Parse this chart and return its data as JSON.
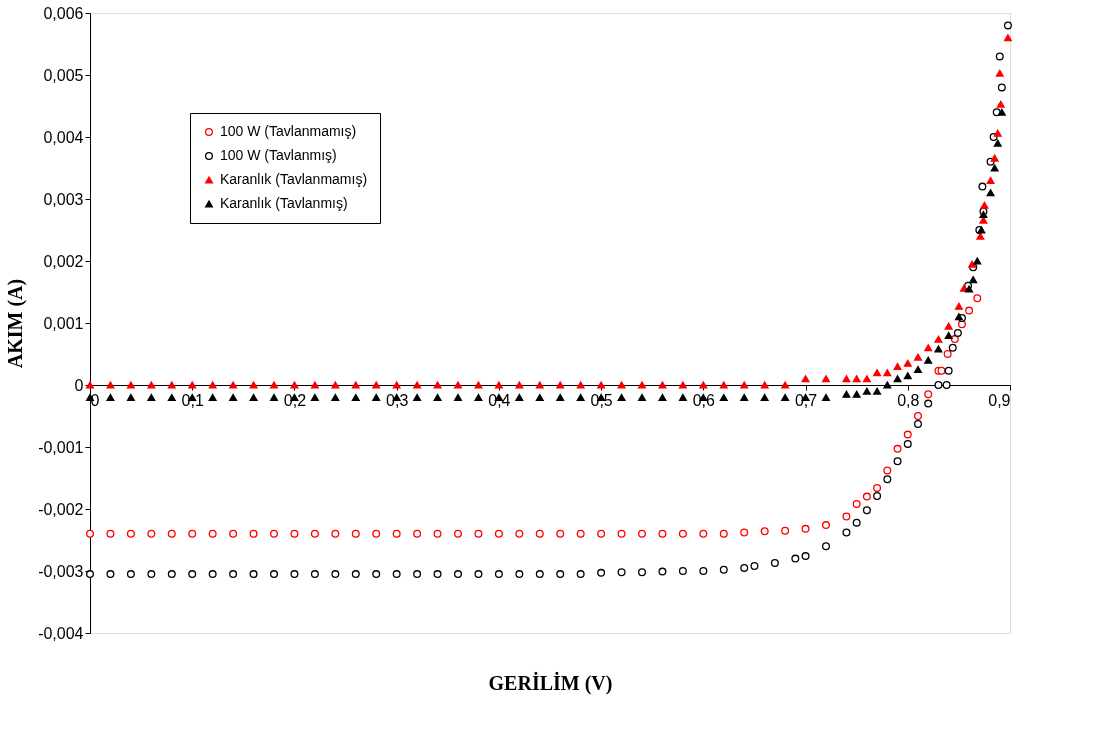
{
  "chart_data": {
    "type": "scatter",
    "xlabel": "GERİLİM (V)",
    "ylabel": "AKIM (A)",
    "xlim": [
      0,
      0.9
    ],
    "xticks": [
      0,
      {
        "value": 0.1,
        "label": "0,1"
      },
      {
        "value": 0.2,
        "label": "0,2"
      },
      {
        "value": 0.3,
        "label": "0,3"
      },
      {
        "value": 0.4,
        "label": "0,4"
      },
      {
        "value": 0.5,
        "label": "0,5"
      },
      {
        "value": 0.6,
        "label": "0,6"
      },
      {
        "value": 0.7,
        "label": "0,7"
      },
      {
        "value": 0.8,
        "label": "0,8"
      },
      {
        "value": 0.9,
        "label": "0,9"
      }
    ],
    "ylim": [
      -0.004,
      0.006
    ],
    "yticks": [
      {
        "value": -0.004,
        "label": "-0,004"
      },
      {
        "value": -0.003,
        "label": "-0,003"
      },
      {
        "value": -0.002,
        "label": "-0,002"
      },
      {
        "value": -0.001,
        "label": "-0,001"
      },
      0,
      {
        "value": 0.001,
        "label": "0,001"
      },
      {
        "value": 0.002,
        "label": "0,002"
      },
      {
        "value": 0.003,
        "label": "0,003"
      },
      {
        "value": 0.004,
        "label": "0,004"
      },
      {
        "value": 0.005,
        "label": "0,005"
      },
      {
        "value": 0.006,
        "label": "0,006"
      }
    ],
    "grid": false,
    "legend": "top left",
    "series": [
      {
        "name": "100 W (Tavlanmamış)",
        "color": "#ff0000",
        "marker": "circle",
        "x": [
          0,
          0.02,
          0.04,
          0.06,
          0.08,
          0.1,
          0.12,
          0.14,
          0.16,
          0.18,
          0.2,
          0.22,
          0.24,
          0.26,
          0.28,
          0.3,
          0.32,
          0.34,
          0.36,
          0.38,
          0.4,
          0.42,
          0.44,
          0.46,
          0.48,
          0.5,
          0.52,
          0.54,
          0.56,
          0.58,
          0.6,
          0.62,
          0.64,
          0.66,
          0.68,
          0.7,
          0.72,
          0.74,
          0.75,
          0.76,
          0.77,
          0.78,
          0.79,
          0.8,
          0.81,
          0.82,
          0.83,
          0.833,
          0.839,
          0.846,
          0.853,
          0.86,
          0.868
        ],
        "values": [
          -0.0024,
          -0.0024,
          -0.0024,
          -0.0024,
          -0.0024,
          -0.0024,
          -0.0024,
          -0.0024,
          -0.0024,
          -0.0024,
          -0.0024,
          -0.0024,
          -0.0024,
          -0.0024,
          -0.0024,
          -0.0024,
          -0.0024,
          -0.0024,
          -0.0024,
          -0.0024,
          -0.0024,
          -0.0024,
          -0.0024,
          -0.0024,
          -0.0024,
          -0.0024,
          -0.0024,
          -0.0024,
          -0.0024,
          -0.0024,
          -0.0024,
          -0.0024,
          -0.00238,
          -0.00236,
          -0.00235,
          -0.00232,
          -0.00226,
          -0.00212,
          -0.00192,
          -0.0018,
          -0.00166,
          -0.00138,
          -0.00103,
          -0.0008,
          -0.0005,
          -0.00015,
          0.00023,
          0.00023,
          0.0005,
          0.00074,
          0.00098,
          0.0012,
          0.0014
        ]
      },
      {
        "name": "100 W (Tavlanmış)",
        "color": "#000000",
        "marker": "circle",
        "x": [
          0,
          0.02,
          0.04,
          0.06,
          0.08,
          0.1,
          0.12,
          0.14,
          0.16,
          0.18,
          0.2,
          0.22,
          0.24,
          0.26,
          0.28,
          0.3,
          0.32,
          0.34,
          0.36,
          0.38,
          0.4,
          0.42,
          0.44,
          0.46,
          0.48,
          0.5,
          0.52,
          0.54,
          0.56,
          0.58,
          0.6,
          0.62,
          0.64,
          0.65,
          0.67,
          0.69,
          0.7,
          0.72,
          0.74,
          0.75,
          0.76,
          0.77,
          0.78,
          0.79,
          0.8,
          0.81,
          0.82,
          0.83,
          0.838,
          0.84,
          0.844,
          0.849,
          0.853,
          0.859,
          0.864,
          0.87,
          0.873,
          0.874,
          0.881,
          0.884,
          0.887,
          0.89,
          0.892,
          0.898
        ],
        "values": [
          -0.00305,
          -0.00305,
          -0.00305,
          -0.00305,
          -0.00305,
          -0.00305,
          -0.00305,
          -0.00305,
          -0.00305,
          -0.00305,
          -0.00305,
          -0.00305,
          -0.00305,
          -0.00305,
          -0.00305,
          -0.00305,
          -0.00305,
          -0.00305,
          -0.00305,
          -0.00305,
          -0.00305,
          -0.00305,
          -0.00305,
          -0.00305,
          -0.00305,
          -0.00303,
          -0.00302,
          -0.00302,
          -0.00301,
          -0.003,
          -0.003,
          -0.00298,
          -0.00295,
          -0.00292,
          -0.00287,
          -0.0028,
          -0.00276,
          -0.0026,
          -0.00238,
          -0.00222,
          -0.00202,
          -0.00179,
          -0.00152,
          -0.00123,
          -0.00095,
          -0.00063,
          -0.0003,
          0.0,
          0.0,
          0.00023,
          0.0006,
          0.00084,
          0.00108,
          0.0016,
          0.0019,
          0.0025,
          0.0032,
          0.0028,
          0.0036,
          0.004,
          0.0044,
          0.0053,
          0.0048,
          0.0058
        ]
      },
      {
        "name": "Karanlık (Tavlanmamış)",
        "color": "#ff0000",
        "marker": "triangle",
        "x": [
          0,
          0.02,
          0.04,
          0.06,
          0.08,
          0.1,
          0.12,
          0.14,
          0.16,
          0.18,
          0.2,
          0.22,
          0.24,
          0.26,
          0.28,
          0.3,
          0.32,
          0.34,
          0.36,
          0.38,
          0.4,
          0.42,
          0.44,
          0.46,
          0.48,
          0.5,
          0.52,
          0.54,
          0.56,
          0.58,
          0.6,
          0.62,
          0.64,
          0.66,
          0.68,
          0.7,
          0.72,
          0.74,
          0.75,
          0.76,
          0.77,
          0.78,
          0.79,
          0.8,
          0.81,
          0.82,
          0.83,
          0.84,
          0.85,
          0.855,
          0.863,
          0.871,
          0.874,
          0.875,
          0.881,
          0.885,
          0.888,
          0.891,
          0.89,
          0.898
        ],
        "values": [
          0,
          0,
          0,
          0,
          0,
          0,
          0,
          0,
          0,
          0,
          0,
          0,
          0,
          0,
          0,
          0,
          0,
          0,
          0,
          0,
          0,
          0,
          0,
          0,
          0,
          0,
          0,
          0,
          0,
          0,
          0,
          0,
          0,
          0,
          0,
          0.0001,
          0.0001,
          0.0001,
          0.0001,
          0.0001,
          0.0002,
          0.0002,
          0.0003,
          0.00035,
          0.00045,
          0.0006,
          0.00074,
          0.00095,
          0.00127,
          0.00156,
          0.00195,
          0.0024,
          0.00266,
          0.0029,
          0.0033,
          0.00366,
          0.00406,
          0.00453,
          0.00503,
          0.0056
        ]
      },
      {
        "name": "Karanlık (Tavlanmış)",
        "color": "#000000",
        "marker": "triangle",
        "x": [
          0,
          0.02,
          0.04,
          0.06,
          0.08,
          0.1,
          0.12,
          0.14,
          0.16,
          0.18,
          0.2,
          0.22,
          0.24,
          0.26,
          0.28,
          0.3,
          0.32,
          0.34,
          0.36,
          0.38,
          0.4,
          0.42,
          0.44,
          0.46,
          0.48,
          0.5,
          0.52,
          0.54,
          0.56,
          0.58,
          0.6,
          0.62,
          0.64,
          0.66,
          0.68,
          0.7,
          0.72,
          0.74,
          0.75,
          0.76,
          0.77,
          0.78,
          0.79,
          0.8,
          0.81,
          0.82,
          0.83,
          0.84,
          0.85,
          0.86,
          0.864,
          0.868,
          0.872,
          0.874,
          0.881,
          0.885,
          0.888,
          0.892
        ],
        "values": [
          -0.0002,
          -0.0002,
          -0.0002,
          -0.0002,
          -0.0002,
          -0.0002,
          -0.0002,
          -0.0002,
          -0.0002,
          -0.0002,
          -0.0002,
          -0.0002,
          -0.0002,
          -0.0002,
          -0.0002,
          -0.0002,
          -0.0002,
          -0.0002,
          -0.0002,
          -0.0002,
          -0.0002,
          -0.0002,
          -0.0002,
          -0.0002,
          -0.0002,
          -0.0002,
          -0.0002,
          -0.0002,
          -0.0002,
          -0.0002,
          -0.0002,
          -0.0002,
          -0.0002,
          -0.0002,
          -0.0002,
          -0.0002,
          -0.0002,
          -0.00015,
          -0.00015,
          -0.0001,
          -0.0001,
          0,
          0.0001,
          0.00015,
          0.00025,
          0.0004,
          0.00058,
          0.0008,
          0.0011,
          0.00155,
          0.0017,
          0.002,
          0.0025,
          0.00275,
          0.0031,
          0.0035,
          0.0039,
          0.0044
        ]
      }
    ]
  }
}
